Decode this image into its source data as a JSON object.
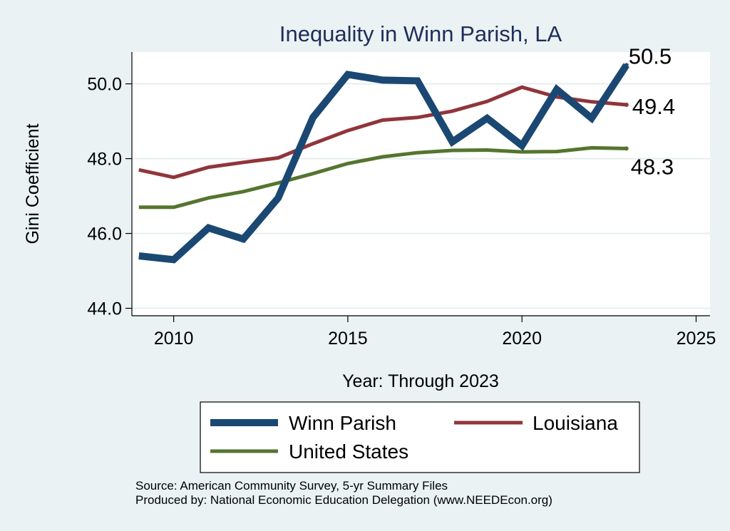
{
  "chart_data": {
    "type": "line",
    "title": "Inequality in Winn Parish, LA",
    "xlabel": "Year: Through 2023",
    "ylabel": "Gini Coefficient",
    "xlim": [
      2008.8,
      2025.4
    ],
    "ylim": [
      43.8,
      50.85
    ],
    "xticks": [
      2010,
      2015,
      2020,
      2025
    ],
    "yticks": [
      44.0,
      46.0,
      48.0,
      50.0
    ],
    "ytick_labels": [
      "44.0",
      "46.0",
      "48.0",
      "50.0"
    ],
    "x": [
      2009,
      2010,
      2011,
      2012,
      2013,
      2014,
      2015,
      2016,
      2017,
      2018,
      2019,
      2020,
      2021,
      2022,
      2023
    ],
    "series": [
      {
        "name": "Winn Parish",
        "color": "#1a4872",
        "end_label": "50.5",
        "values": [
          45.4,
          45.3,
          46.15,
          45.85,
          46.95,
          49.1,
          50.25,
          50.1,
          50.08,
          48.45,
          49.08,
          48.35,
          49.85,
          49.08,
          50.5
        ]
      },
      {
        "name": "Louisiana",
        "color": "#90353b",
        "end_label": "49.4",
        "values": [
          47.7,
          47.5,
          47.77,
          47.9,
          48.02,
          48.4,
          48.75,
          49.03,
          49.1,
          49.27,
          49.53,
          49.91,
          49.65,
          49.52,
          49.44
        ]
      },
      {
        "name": "United States",
        "color": "#55752f",
        "end_label": "48.3",
        "values": [
          46.7,
          46.7,
          46.95,
          47.12,
          47.35,
          47.6,
          47.87,
          48.05,
          48.16,
          48.22,
          48.23,
          48.18,
          48.19,
          48.29,
          48.27
        ]
      }
    ],
    "legend_position": "bottom",
    "source_lines": [
      "Source: American Community Survey, 5-yr Summary Files",
      "Produced by: National Economic Education Delegation (www.NEEDEcon.org)"
    ]
  }
}
